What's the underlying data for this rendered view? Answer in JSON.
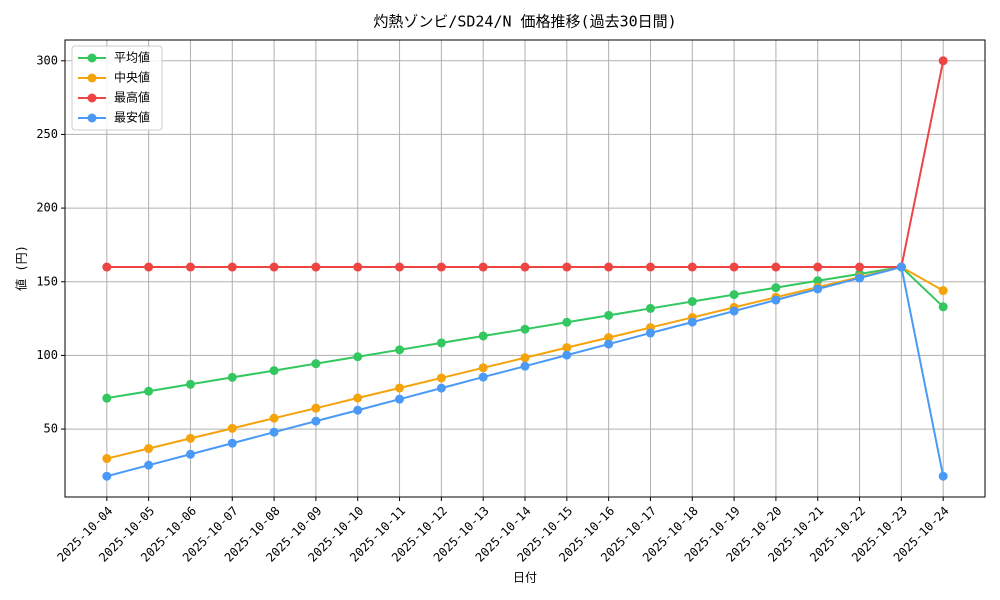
{
  "chart_data": {
    "type": "line",
    "title": "灼熱ゾンビ/SD24/N 価格推移(過去30日間)",
    "x_label": "日付",
    "y_label": "値 (円)",
    "categories": [
      "2025-10-04",
      "2025-10-05",
      "2025-10-06",
      "2025-10-07",
      "2025-10-08",
      "2025-10-09",
      "2025-10-10",
      "2025-10-11",
      "2025-10-12",
      "2025-10-13",
      "2025-10-14",
      "2025-10-15",
      "2025-10-16",
      "2025-10-17",
      "2025-10-18",
      "2025-10-19",
      "2025-10-20",
      "2025-10-21",
      "2025-10-22",
      "2025-10-23",
      "2025-10-24"
    ],
    "series": [
      {
        "name": "平均値",
        "color": "#33c75f",
        "values": [
          71,
          75.7,
          80.4,
          85.1,
          89.7,
          94.4,
          99.1,
          103.8,
          108.5,
          113.2,
          117.8,
          122.5,
          127.2,
          131.9,
          136.6,
          141.3,
          146.0,
          150.7,
          155.3,
          160,
          133
        ]
      },
      {
        "name": "中央値",
        "color": "#f5a30a",
        "values": [
          30,
          36.8,
          43.7,
          50.5,
          57.4,
          64.2,
          71.1,
          77.9,
          84.7,
          91.6,
          98.4,
          105.3,
          112.1,
          118.9,
          125.8,
          132.6,
          139.5,
          146.3,
          153.2,
          160,
          144
        ]
      },
      {
        "name": "最高値",
        "color": "#ef4444",
        "values": [
          160,
          160,
          160,
          160,
          160,
          160,
          160,
          160,
          160,
          160,
          160,
          160,
          160,
          160,
          160,
          160,
          160,
          160,
          160,
          160,
          300
        ]
      },
      {
        "name": "最安値",
        "color": "#4a9af5",
        "values": [
          18,
          25.5,
          32.9,
          40.4,
          47.9,
          55.4,
          62.8,
          70.3,
          77.8,
          85.3,
          92.7,
          100.2,
          107.7,
          115.2,
          122.6,
          130.1,
          137.6,
          145.1,
          152.5,
          160,
          18
        ]
      }
    ],
    "ylim": [
      3.9,
      314.1
    ],
    "yticks": [
      50,
      100,
      150,
      200,
      250,
      300
    ],
    "grid": true,
    "legend": "upper-left"
  }
}
